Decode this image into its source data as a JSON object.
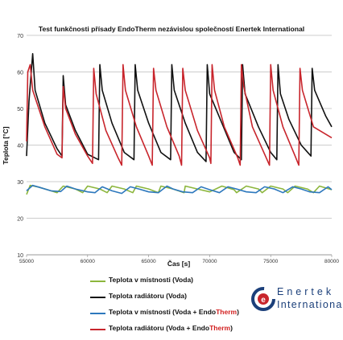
{
  "chart_data": {
    "type": "line",
    "title": "Test funkčnosti přísady EndoTherm nezávislou společností Enertek International",
    "xlabel": "Čas [s]",
    "ylabel": "Teplota [°C]",
    "xlim": [
      55000,
      80000
    ],
    "ylim": [
      10,
      70
    ],
    "xticks": [
      55000,
      60000,
      65000,
      70000,
      75000,
      80000
    ],
    "yticks": [
      10,
      20,
      30,
      40,
      50,
      60,
      70
    ],
    "grid": "horizontal",
    "legend_position": "bottom",
    "series": [
      {
        "name": "Teplota v místnosti (Voda)",
        "color": "#8cb63c",
        "x": [
          55000,
          55300,
          56000,
          57000,
          57500,
          58000,
          59000,
          59600,
          60000,
          61000,
          61600,
          62000,
          63000,
          63700,
          64000,
          65000,
          65800,
          66000,
          67000,
          67900,
          68000,
          69000,
          70000,
          71000,
          72000,
          72200,
          73000,
          74000,
          74300,
          75000,
          76000,
          76400,
          77000,
          78000,
          78500,
          79000,
          80000
        ],
        "y": [
          26.5,
          29.0,
          28.5,
          27.5,
          27.0,
          28.8,
          28.0,
          27.0,
          28.8,
          28.0,
          27.0,
          28.8,
          28.0,
          27.0,
          28.8,
          28.0,
          27.0,
          28.8,
          28.0,
          27.0,
          28.8,
          28.0,
          27.2,
          28.8,
          27.8,
          27.0,
          28.8,
          28.0,
          27.0,
          28.8,
          28.0,
          27.0,
          28.8,
          28.0,
          27.0,
          28.8,
          27.8
        ]
      },
      {
        "name": "Teplota radiátoru (Voda)",
        "color": "#111111",
        "x": [
          55000,
          55200,
          55500,
          55700,
          56500,
          57500,
          57900,
          58000,
          58200,
          59000,
          60000,
          60900,
          61000,
          61200,
          62000,
          63000,
          63800,
          63900,
          64100,
          65000,
          66000,
          66800,
          66900,
          67100,
          68000,
          69000,
          69700,
          69800,
          70000,
          71000,
          72000,
          72600,
          72700,
          72900,
          74000,
          75000,
          75500,
          75600,
          75800,
          76500,
          77500,
          78300,
          78400,
          78600,
          79500,
          80000
        ],
        "y": [
          37,
          52,
          65,
          55,
          46,
          39,
          37,
          59,
          51,
          44,
          37.5,
          36,
          62,
          55,
          46,
          38,
          36,
          62,
          55,
          46,
          38,
          36,
          62,
          55,
          46,
          38,
          35.5,
          62,
          54,
          46,
          38,
          36,
          62,
          54,
          45,
          38,
          36,
          62,
          54,
          47,
          40,
          37,
          61,
          55,
          48,
          45
        ]
      },
      {
        "name": "Teplota v místnosti (Voda + EndoTherm)",
        "color": "#2d78bd",
        "x": [
          55000,
          55500,
          56000,
          57000,
          57800,
          58300,
          59000,
          60000,
          60600,
          61200,
          62000,
          62800,
          63500,
          64200,
          65000,
          65800,
          66500,
          67000,
          67800,
          68600,
          69300,
          70000,
          70800,
          71500,
          72200,
          73000,
          73800,
          74500,
          75300,
          76000,
          76800,
          77500,
          78200,
          79000,
          79700,
          80000
        ],
        "y": [
          27.5,
          29.0,
          28.5,
          27.5,
          27.3,
          28.8,
          28.0,
          27.2,
          27.0,
          28.6,
          27.5,
          26.8,
          28.6,
          28.0,
          27.2,
          27.0,
          28.8,
          28.0,
          27.2,
          27.0,
          28.6,
          27.8,
          27.0,
          28.6,
          28.0,
          27.2,
          27.0,
          28.6,
          28.0,
          27.0,
          28.6,
          28.0,
          27.2,
          27.0,
          28.6,
          27.8
        ]
      },
      {
        "name": "Teplota radiátoru (Voda + EndoTherm)",
        "color": "#c8252c",
        "x": [
          55000,
          55100,
          55300,
          55500,
          56500,
          57500,
          57900,
          58000,
          58200,
          59000,
          60000,
          60400,
          60500,
          60700,
          61500,
          62500,
          62800,
          62900,
          63100,
          64000,
          65000,
          65300,
          65400,
          65600,
          66500,
          67500,
          67700,
          67800,
          68000,
          69000,
          70000,
          70100,
          70200,
          70400,
          71200,
          72300,
          72500,
          72600,
          72800,
          73500,
          74700,
          74900,
          75000,
          75200,
          76000,
          77000,
          77300,
          77400,
          77600,
          78500,
          80000
        ],
        "y": [
          41,
          60,
          62,
          55,
          45,
          37.5,
          36.5,
          56,
          50,
          43,
          37,
          35,
          61,
          54,
          44,
          36.5,
          34.5,
          62,
          55,
          45,
          37,
          34.5,
          61,
          55,
          45,
          37,
          34.5,
          61,
          55,
          44,
          36.5,
          35,
          62,
          55,
          45,
          36.5,
          34.5,
          62,
          56,
          45,
          36,
          34.5,
          62,
          55,
          45,
          37,
          34.5,
          61,
          55,
          45,
          42
        ]
      }
    ]
  },
  "legend": {
    "items": [
      {
        "text": "Teplota v místnosti (Voda",
        "highlight": "",
        "suffix": ")",
        "color": "#8cb63c"
      },
      {
        "text": "Teplota radiátoru (Voda",
        "highlight": "",
        "suffix": ")",
        "color": "#111111"
      },
      {
        "text": "Teplota v místnosti (Voda + Endo",
        "highlight": "Therm",
        "suffix": ")",
        "color": "#2d78bd"
      },
      {
        "text": "Teplota radiátoru (Voda + Endo",
        "highlight": "Therm",
        "suffix": ")",
        "color": "#c8252c"
      }
    ]
  },
  "logo": {
    "line1": "Enertek",
    "line2": "International",
    "accent": "#c8252c",
    "primary": "#1b3f7a"
  }
}
